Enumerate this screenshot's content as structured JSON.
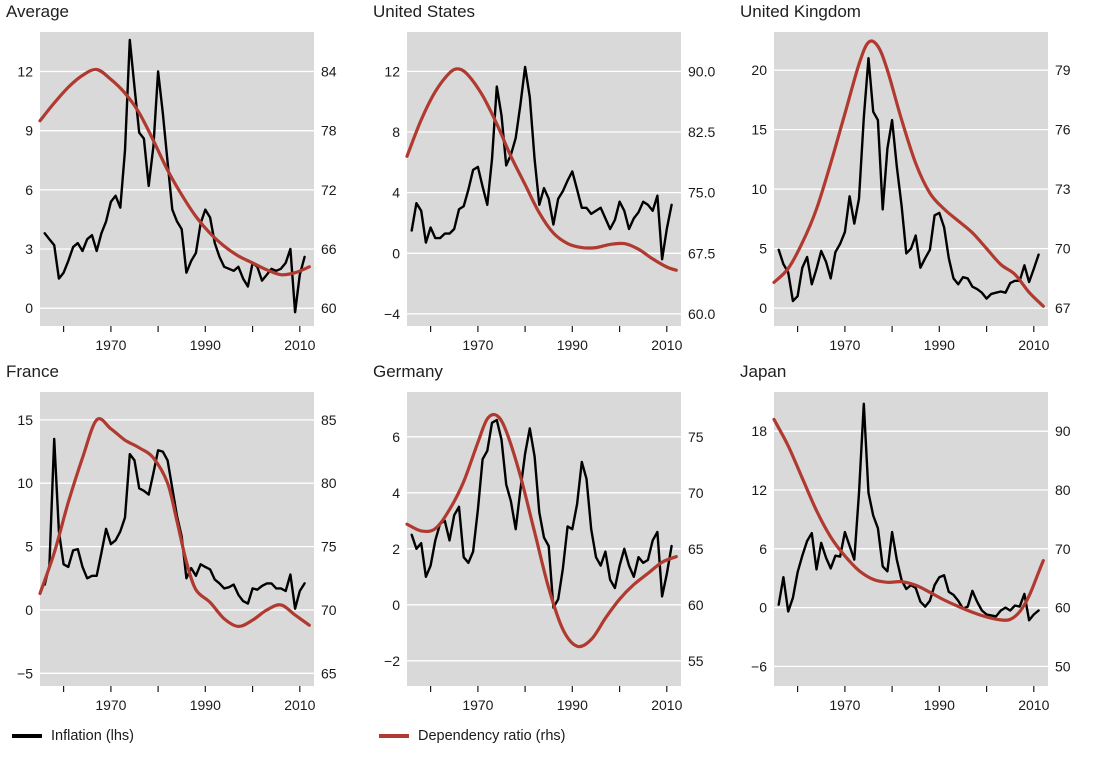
{
  "legend": {
    "inflation": "Inflation (lhs)",
    "dependency": "Dependency ratio (rhs)"
  },
  "colors": {
    "inflation": "#000000",
    "dependency": "#b03a30",
    "plot_bg": "#d9d9d9",
    "grid": "#ffffff",
    "text": "#1a1a1a"
  },
  "x_axis": {
    "range": [
      1955,
      2013
    ],
    "ticks": [
      1960,
      1970,
      1980,
      1990,
      2000,
      2010
    ],
    "labels": [
      1970,
      1990,
      2010
    ]
  },
  "chart_data": [
    {
      "type": "line",
      "title": "Average",
      "lhs_ticks": [
        0,
        3,
        6,
        9,
        12
      ],
      "lhs_labels": [
        "0",
        "3",
        "6",
        "9",
        "12"
      ],
      "rhs_ticks": [
        60,
        66,
        72,
        78,
        84
      ],
      "rhs_labels": [
        "60",
        "66",
        "72",
        "78",
        "84"
      ],
      "lhs_range": [
        -0.9,
        14.0
      ],
      "inflation_start_year": 1956,
      "inflation": [
        3.8,
        3.5,
        3.2,
        1.5,
        1.8,
        2.4,
        3.1,
        3.3,
        2.9,
        3.5,
        3.7,
        2.9,
        3.8,
        4.4,
        5.4,
        5.7,
        5.1,
        8.0,
        13.6,
        11.2,
        8.9,
        8.6,
        6.2,
        8.2,
        12.0,
        9.9,
        7.4,
        5.0,
        4.4,
        4.0,
        1.8,
        2.4,
        2.8,
        4.3,
        5.0,
        4.6,
        3.3,
        2.6,
        2.1,
        2.0,
        1.9,
        2.1,
        1.5,
        1.1,
        2.3,
        2.1,
        1.4,
        1.7,
        2.0,
        1.9,
        2.0,
        2.3,
        3.0,
        -0.2,
        1.7,
        2.6
      ],
      "dependency": [
        [
          1955,
          79.0
        ],
        [
          1958,
          80.8
        ],
        [
          1961,
          82.4
        ],
        [
          1964,
          83.6
        ],
        [
          1967,
          84.2
        ],
        [
          1970,
          83.2
        ],
        [
          1973,
          81.8
        ],
        [
          1976,
          79.8
        ],
        [
          1979,
          77.0
        ],
        [
          1982,
          74.0
        ],
        [
          1985,
          71.5
        ],
        [
          1988,
          69.3
        ],
        [
          1991,
          67.6
        ],
        [
          1994,
          66.3
        ],
        [
          1997,
          65.3
        ],
        [
          2000,
          64.6
        ],
        [
          2003,
          63.9
        ],
        [
          2006,
          63.4
        ],
        [
          2009,
          63.6
        ],
        [
          2012,
          64.2
        ]
      ]
    },
    {
      "type": "line",
      "title": "United States",
      "lhs_ticks": [
        -4,
        0,
        4,
        8,
        12
      ],
      "lhs_labels": [
        "−4",
        "0",
        "4",
        "8",
        "12"
      ],
      "rhs_ticks": [
        60.0,
        67.5,
        75.0,
        82.5,
        90.0
      ],
      "rhs_labels": [
        "60.0",
        "67.5",
        "75.0",
        "82.5",
        "90.0"
      ],
      "lhs_range": [
        -4.8,
        14.6
      ],
      "inflation_start_year": 1956,
      "inflation": [
        1.5,
        3.3,
        2.8,
        0.7,
        1.7,
        1.0,
        1.0,
        1.3,
        1.3,
        1.6,
        2.9,
        3.1,
        4.2,
        5.5,
        5.7,
        4.4,
        3.2,
        6.2,
        11.0,
        9.1,
        5.8,
        6.5,
        7.6,
        9.8,
        12.3,
        10.3,
        6.2,
        3.2,
        4.3,
        3.6,
        1.9,
        3.6,
        4.1,
        4.8,
        5.4,
        4.2,
        3.0,
        3.0,
        2.6,
        2.8,
        3.0,
        2.3,
        1.6,
        2.2,
        3.4,
        2.8,
        1.6,
        2.3,
        2.7,
        3.4,
        3.2,
        2.8,
        3.8,
        -0.4,
        1.6,
        3.2
      ],
      "dependency": [
        [
          1955,
          79.5
        ],
        [
          1958,
          84.0
        ],
        [
          1961,
          87.5
        ],
        [
          1964,
          89.8
        ],
        [
          1966,
          90.3
        ],
        [
          1968,
          89.5
        ],
        [
          1971,
          87.0
        ],
        [
          1974,
          83.5
        ],
        [
          1977,
          79.5
        ],
        [
          1980,
          76.0
        ],
        [
          1983,
          72.5
        ],
        [
          1986,
          70.0
        ],
        [
          1989,
          68.7
        ],
        [
          1992,
          68.2
        ],
        [
          1995,
          68.2
        ],
        [
          1998,
          68.6
        ],
        [
          2001,
          68.7
        ],
        [
          2004,
          68.0
        ],
        [
          2007,
          66.8
        ],
        [
          2010,
          65.8
        ],
        [
          2012,
          65.4
        ]
      ]
    },
    {
      "type": "line",
      "title": "United Kingdom",
      "lhs_ticks": [
        0,
        5,
        10,
        15,
        20
      ],
      "lhs_labels": [
        "0",
        "5",
        "10",
        "15",
        "20"
      ],
      "rhs_ticks": [
        67,
        70,
        73,
        76,
        79
      ],
      "rhs_labels": [
        "67",
        "70",
        "73",
        "76",
        "79"
      ],
      "lhs_range": [
        -1.5,
        23.2
      ],
      "inflation_start_year": 1956,
      "inflation": [
        4.9,
        3.7,
        3.0,
        0.6,
        1.0,
        3.4,
        4.3,
        2.0,
        3.3,
        4.8,
        3.9,
        2.5,
        4.7,
        5.4,
        6.4,
        9.4,
        7.1,
        9.2,
        16.0,
        21.0,
        16.5,
        15.8,
        8.3,
        13.4,
        15.8,
        11.9,
        8.6,
        4.6,
        5.0,
        6.1,
        3.4,
        4.2,
        4.9,
        7.8,
        8.0,
        6.8,
        4.2,
        2.5,
        2.0,
        2.6,
        2.5,
        1.8,
        1.6,
        1.3,
        0.8,
        1.2,
        1.3,
        1.4,
        1.3,
        2.1,
        2.3,
        2.3,
        3.6,
        2.2,
        3.3,
        4.5
      ],
      "dependency": [
        [
          1955,
          68.3
        ],
        [
          1958,
          69.0
        ],
        [
          1961,
          70.3
        ],
        [
          1964,
          72.0
        ],
        [
          1967,
          74.3
        ],
        [
          1970,
          76.8
        ],
        [
          1973,
          79.3
        ],
        [
          1975,
          80.4
        ],
        [
          1977,
          80.2
        ],
        [
          1979,
          79.0
        ],
        [
          1982,
          76.5
        ],
        [
          1985,
          74.3
        ],
        [
          1988,
          72.8
        ],
        [
          1991,
          72.0
        ],
        [
          1994,
          71.4
        ],
        [
          1997,
          70.8
        ],
        [
          2000,
          70.0
        ],
        [
          2003,
          69.2
        ],
        [
          2006,
          68.7
        ],
        [
          2009,
          67.8
        ],
        [
          2012,
          67.1
        ]
      ]
    },
    {
      "type": "line",
      "title": "France",
      "lhs_ticks": [
        -5,
        0,
        5,
        10,
        15
      ],
      "lhs_labels": [
        "−5",
        "0",
        "5",
        "10",
        "15"
      ],
      "rhs_ticks": [
        65,
        70,
        75,
        80,
        85
      ],
      "rhs_labels": [
        "65",
        "70",
        "75",
        "80",
        "85"
      ],
      "lhs_range": [
        -6.0,
        17.2
      ],
      "inflation_start_year": 1956,
      "inflation": [
        2.0,
        3.5,
        13.5,
        6.2,
        3.6,
        3.4,
        4.7,
        4.8,
        3.4,
        2.5,
        2.7,
        2.7,
        4.5,
        6.4,
        5.2,
        5.5,
        6.2,
        7.3,
        12.3,
        11.8,
        9.6,
        9.4,
        9.1,
        10.8,
        12.6,
        12.5,
        11.8,
        9.6,
        7.4,
        5.8,
        2.5,
        3.3,
        2.7,
        3.6,
        3.4,
        3.2,
        2.4,
        2.1,
        1.7,
        1.8,
        2.0,
        1.2,
        0.7,
        0.5,
        1.7,
        1.6,
        1.9,
        2.1,
        2.1,
        1.7,
        1.7,
        1.5,
        2.8,
        0.1,
        1.5,
        2.1
      ],
      "dependency": [
        [
          1955,
          71.3
        ],
        [
          1958,
          74.5
        ],
        [
          1961,
          78.5
        ],
        [
          1964,
          82.0
        ],
        [
          1967,
          85.0
        ],
        [
          1970,
          84.3
        ],
        [
          1973,
          83.4
        ],
        [
          1976,
          82.8
        ],
        [
          1979,
          82.0
        ],
        [
          1982,
          80.0
        ],
        [
          1984,
          77.0
        ],
        [
          1986,
          73.8
        ],
        [
          1988,
          71.6
        ],
        [
          1991,
          70.6
        ],
        [
          1994,
          69.3
        ],
        [
          1997,
          68.7
        ],
        [
          2000,
          69.2
        ],
        [
          2003,
          70.0
        ],
        [
          2006,
          70.4
        ],
        [
          2009,
          69.6
        ],
        [
          2012,
          68.8
        ]
      ]
    },
    {
      "type": "line",
      "title": "Germany",
      "lhs_ticks": [
        -2,
        0,
        2,
        4,
        6
      ],
      "lhs_labels": [
        "−2",
        "0",
        "2",
        "4",
        "6"
      ],
      "rhs_ticks": [
        55,
        60,
        65,
        70,
        75
      ],
      "rhs_labels": [
        "55",
        "60",
        "65",
        "70",
        "75"
      ],
      "lhs_range": [
        -2.9,
        7.6
      ],
      "inflation_start_year": 1956,
      "inflation": [
        2.5,
        2.0,
        2.2,
        1.0,
        1.4,
        2.3,
        2.9,
        3.0,
        2.3,
        3.2,
        3.5,
        1.7,
        1.5,
        1.9,
        3.4,
        5.2,
        5.5,
        6.5,
        6.6,
        5.9,
        4.3,
        3.7,
        2.7,
        4.1,
        5.4,
        6.3,
        5.3,
        3.3,
        2.4,
        2.1,
        -0.1,
        0.2,
        1.3,
        2.8,
        2.7,
        3.6,
        5.1,
        4.5,
        2.7,
        1.7,
        1.4,
        1.9,
        0.9,
        0.6,
        1.4,
        2.0,
        1.4,
        1.0,
        1.7,
        1.5,
        1.6,
        2.3,
        2.6,
        0.3,
        1.1,
        2.1
      ],
      "dependency": [
        [
          1955,
          67.2
        ],
        [
          1958,
          66.6
        ],
        [
          1961,
          66.8
        ],
        [
          1964,
          68.5
        ],
        [
          1967,
          71.0
        ],
        [
          1970,
          74.5
        ],
        [
          1972,
          76.6
        ],
        [
          1974,
          76.9
        ],
        [
          1976,
          75.5
        ],
        [
          1979,
          71.5
        ],
        [
          1982,
          66.5
        ],
        [
          1985,
          61.5
        ],
        [
          1988,
          57.8
        ],
        [
          1991,
          56.3
        ],
        [
          1994,
          56.9
        ],
        [
          1997,
          58.8
        ],
        [
          2000,
          60.5
        ],
        [
          2003,
          61.8
        ],
        [
          2006,
          62.8
        ],
        [
          2009,
          63.8
        ],
        [
          2012,
          64.3
        ]
      ]
    },
    {
      "type": "line",
      "title": "Japan",
      "lhs_ticks": [
        -6,
        0,
        6,
        12,
        18
      ],
      "lhs_labels": [
        "−6",
        "0",
        "6",
        "12",
        "18"
      ],
      "rhs_ticks": [
        50,
        60,
        70,
        80,
        90
      ],
      "rhs_labels": [
        "50",
        "60",
        "70",
        "80",
        "90"
      ],
      "lhs_range": [
        -8.0,
        22.0
      ],
      "inflation_start_year": 1956,
      "inflation": [
        0.3,
        3.1,
        -0.4,
        1.0,
        3.6,
        5.3,
        6.8,
        7.6,
        3.9,
        6.6,
        5.1,
        4.0,
        5.3,
        5.2,
        7.7,
        6.3,
        4.9,
        11.7,
        20.8,
        11.7,
        9.4,
        8.1,
        4.2,
        3.7,
        7.7,
        4.9,
        2.8,
        1.9,
        2.3,
        2.0,
        0.6,
        0.1,
        0.7,
        2.3,
        3.1,
        3.3,
        1.6,
        1.3,
        0.7,
        -0.1,
        0.1,
        1.7,
        0.6,
        -0.3,
        -0.7,
        -0.8,
        -0.9,
        -0.3,
        0.0,
        -0.3,
        0.2,
        0.1,
        1.4,
        -1.3,
        -0.7,
        -0.3
      ],
      "dependency": [
        [
          1955,
          92.0
        ],
        [
          1958,
          87.5
        ],
        [
          1961,
          82.0
        ],
        [
          1964,
          76.5
        ],
        [
          1967,
          72.0
        ],
        [
          1970,
          68.8
        ],
        [
          1973,
          66.3
        ],
        [
          1976,
          64.8
        ],
        [
          1979,
          64.3
        ],
        [
          1982,
          64.4
        ],
        [
          1985,
          63.8
        ],
        [
          1988,
          62.6
        ],
        [
          1991,
          61.3
        ],
        [
          1994,
          60.2
        ],
        [
          1997,
          59.2
        ],
        [
          2000,
          58.4
        ],
        [
          2003,
          57.9
        ],
        [
          2005,
          58.0
        ],
        [
          2007,
          59.3
        ],
        [
          2009,
          62.0
        ],
        [
          2011,
          66.0
        ],
        [
          2012,
          68.0
        ]
      ]
    }
  ]
}
